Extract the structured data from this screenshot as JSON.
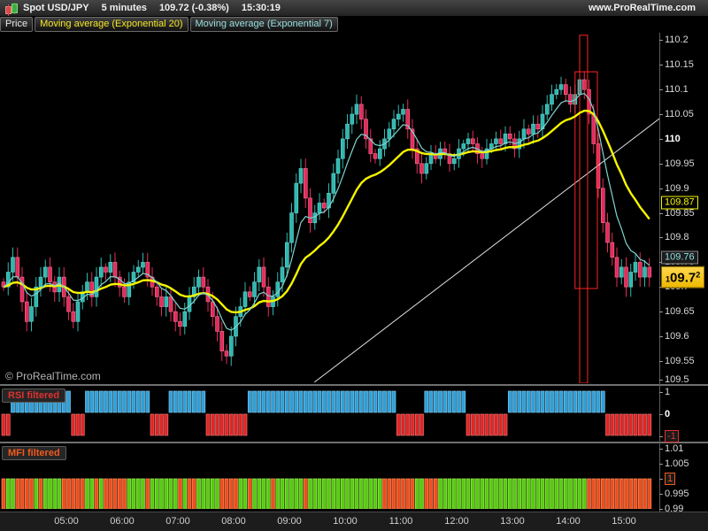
{
  "topbar": {
    "symbol": "Spot USD/JPY",
    "timeframe": "5 minutes",
    "price_change": "109.72 (-0.38%)",
    "clock": "15:30:19",
    "website": "www.ProRealTime.com"
  },
  "tabs": [
    {
      "label": "Price",
      "color": "#e8e8e8"
    },
    {
      "label": "Moving average (Exponential 20)",
      "color": "#f5e523"
    },
    {
      "label": "Moving average (Exponential 7)",
      "color": "#9adede"
    }
  ],
  "watermark": "© ProRealTime.com",
  "colors": {
    "background": "#000000",
    "candle_up_fill": "#2eb8b0",
    "candle_up_stroke": "#63d2cb",
    "candle_down_fill": "#e62a5d",
    "candle_down_stroke": "#f2738f",
    "ema20": "#f5f500",
    "ema7": "#7fd4cf",
    "trendline": "#e0e0e0",
    "annotation_rect": "#ff2222",
    "rsi_up_fill": "#2f9fd8",
    "rsi_up_stroke": "#7cc7ec",
    "rsi_down_fill": "#e02525",
    "rsi_down_stroke": "#f07070",
    "mfi_up_fill": "#55cc11",
    "mfi_up_stroke": "#9ce855",
    "mfi_down_fill": "#ee4d1e",
    "mfi_down_stroke": "#ff8c5a",
    "axis_text": "#d9d9d9"
  },
  "chart_data": {
    "main": {
      "type": "candlestick",
      "title": "Spot USD/JPY 5 minutes",
      "interval_minutes": 5,
      "closes": [
        109.7,
        109.73,
        109.76,
        109.72,
        109.67,
        109.63,
        109.66,
        109.7,
        109.72,
        109.74,
        109.71,
        109.69,
        109.72,
        109.68,
        109.65,
        109.63,
        109.67,
        109.69,
        109.71,
        109.68,
        109.72,
        109.74,
        109.73,
        109.75,
        109.72,
        109.7,
        109.68,
        109.71,
        109.73,
        109.74,
        109.75,
        109.72,
        109.7,
        109.68,
        109.66,
        109.68,
        109.65,
        109.63,
        109.62,
        109.65,
        109.68,
        109.7,
        109.72,
        109.7,
        109.67,
        109.64,
        109.61,
        109.57,
        109.56,
        109.6,
        109.64,
        109.66,
        109.69,
        109.68,
        109.71,
        109.74,
        109.7,
        109.66,
        109.68,
        109.71,
        109.74,
        109.79,
        109.85,
        109.91,
        109.94,
        109.88,
        109.83,
        109.85,
        109.87,
        109.86,
        109.89,
        109.93,
        109.96,
        110.0,
        110.03,
        110.05,
        110.07,
        110.04,
        110.0,
        109.97,
        109.96,
        109.98,
        110.0,
        110.02,
        110.04,
        110.05,
        110.06,
        110.02,
        109.98,
        109.95,
        109.93,
        109.95,
        109.97,
        109.96,
        109.98,
        109.97,
        109.95,
        109.96,
        109.98,
        109.99,
        110.0,
        109.99,
        109.97,
        109.96,
        109.98,
        109.99,
        110.0,
        109.99,
        110.01,
        110.0,
        109.98,
        110.0,
        110.02,
        110.01,
        110.03,
        110.02,
        110.05,
        110.07,
        110.09,
        110.1,
        110.11,
        110.09,
        110.07,
        110.09,
        110.12,
        110.1,
        110.05,
        109.99,
        109.9,
        109.83,
        109.79,
        109.76,
        109.72,
        109.74,
        109.7,
        109.73,
        109.75,
        109.72,
        109.74,
        109.72
      ],
      "overlays": [
        {
          "name": "Moving average (Exponential 20)",
          "period": 20,
          "color": "#f5f500"
        },
        {
          "name": "Moving average (Exponential 7)",
          "period": 7,
          "color": "#7fd4cf"
        }
      ],
      "y_axis": {
        "min": 109.505,
        "max": 110.215,
        "ticks": [
          "110.2",
          "110.15",
          "110.1",
          "110.05",
          "110",
          "109.95",
          "109.9",
          "109.85",
          "109.8",
          "109.75",
          "109.7",
          "109.65",
          "109.6",
          "109.55",
          "109.5"
        ],
        "bold_tick": "110"
      },
      "price_badges": {
        "ema20": {
          "label": "109.87",
          "price": 109.87
        },
        "ema7": {
          "label": "109.76",
          "price": 109.76
        },
        "last": {
          "label": "109.72",
          "price": 109.72,
          "parts": {
            "small": "1",
            "big": "09.7",
            "sup": "2"
          }
        }
      },
      "annotations": {
        "trendline": {
          "i1": 66.9,
          "p1": 109.507,
          "i2": 143.4,
          "p2": 110.057
        },
        "rects": [
          {
            "i1": 124.0,
            "i2": 125.7,
            "p1": 110.21,
            "p2": 109.505
          },
          {
            "i1": 123.0,
            "i2": 127.8,
            "p1": 110.136,
            "p2": 109.697
          }
        ]
      }
    },
    "rsi": {
      "type": "bar",
      "title": "RSI filtered",
      "title_color": "#e03030",
      "ylim": [
        -1,
        1
      ],
      "pattern": "RRBBBBBBBBBBBBBRRRBBBBBBBBBBBBBBRRRRBBBBBBBBRRRRRRRRRBBBBBBBBBBBBBBBBBBBBBBBBBBBBBBBBRRRRRRBBBBBBBBBRRRRRRRRRBBBBBBBBBBBBBBBBBBBBBRRRRRRRRRR",
      "legend": {
        "B": 1,
        "R": -1
      },
      "ticks": [
        {
          "label": "1",
          "v": 1
        },
        {
          "label": "0",
          "v": 0,
          "bold": true
        },
        {
          "label": "-1",
          "v": -1,
          "highlight": "#e03030"
        }
      ],
      "current_value": "-1"
    },
    "mfi": {
      "type": "bar",
      "title": "MFI filtered",
      "title_color": "#f05a1e",
      "ylim": [
        0.99,
        1.01
      ],
      "bar_top_value": 1,
      "pattern": "RGGRRRRGRGGGGRRRRRGGRGRRRRRGGGGRGGGGGGRGRRGGGGGRRRRGGRGGGGRGGGGGGRGGGGGGGGGGGGGGGGRRRRRRRGGRRRGGGGGGGGGGGGGGGGGGGGGGGGGGGGGGGGRRRRRRRRRRRRRR",
      "legend": {
        "G": "up",
        "R": "down"
      },
      "ticks": [
        {
          "label": "1.01",
          "v": 1.01
        },
        {
          "label": "1.005",
          "v": 1.005
        },
        {
          "label": "1",
          "v": 1,
          "highlight": "#f05a1e"
        },
        {
          "label": "0.995",
          "v": 0.995
        },
        {
          "label": "0.99",
          "v": 0.99
        }
      ],
      "current_value": "1"
    },
    "x_axis": {
      "labels": [
        "05:00",
        "06:00",
        "07:00",
        "08:00",
        "09:00",
        "10:00",
        "11:00",
        "12:00",
        "13:00",
        "14:00",
        "15:00"
      ],
      "first_label_hour": 5
    }
  }
}
